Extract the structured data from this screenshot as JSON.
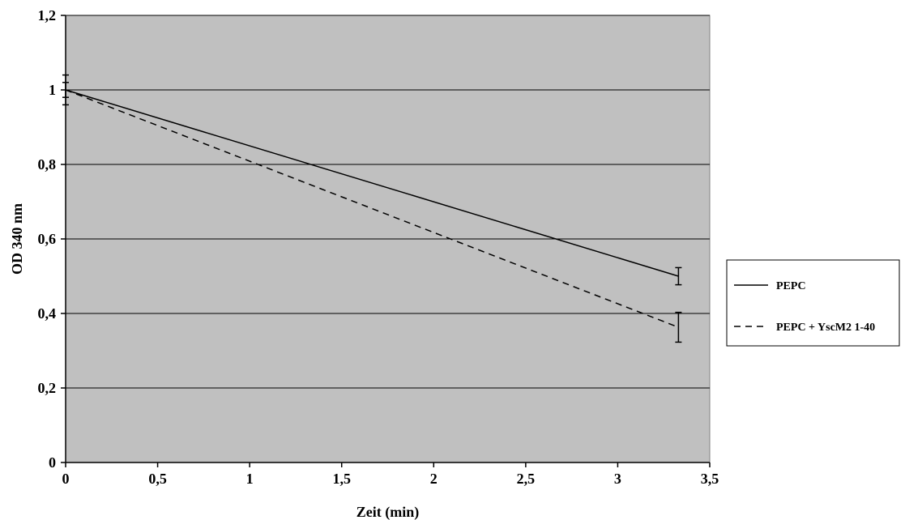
{
  "chart_data": {
    "type": "line",
    "title": "",
    "xlabel": "Zeit (min)",
    "ylabel": "OD 340 nm",
    "xlim": [
      0,
      3.5
    ],
    "ylim": [
      0,
      1.2
    ],
    "x_ticks": [
      0,
      0.5,
      1,
      1.5,
      2,
      2.5,
      3,
      3.5
    ],
    "x_tick_labels": [
      "0",
      "0,5",
      "1",
      "1,5",
      "2",
      "2,5",
      "3",
      "3,5"
    ],
    "y_ticks": [
      0,
      0.2,
      0.4,
      0.6,
      0.8,
      1,
      1.2
    ],
    "y_tick_labels": [
      "0",
      "0,2",
      "0,4",
      "0,6",
      "0,8",
      "1",
      "1,2"
    ],
    "grid": "horizontal",
    "plot_background": "#c0c0c0",
    "legend_position": "right",
    "series": [
      {
        "name": "PEPC",
        "style": "solid",
        "color": "#000000",
        "x": [
          0,
          3.33
        ],
        "y": [
          1.0,
          0.5
        ],
        "error": [
          0.02,
          0.023
        ]
      },
      {
        "name": "PEPC + YscM2 1-40",
        "style": "dashed",
        "color": "#000000",
        "x": [
          0,
          3.33
        ],
        "y": [
          1.0,
          0.363
        ],
        "error": [
          0.04,
          0.04
        ]
      }
    ]
  }
}
